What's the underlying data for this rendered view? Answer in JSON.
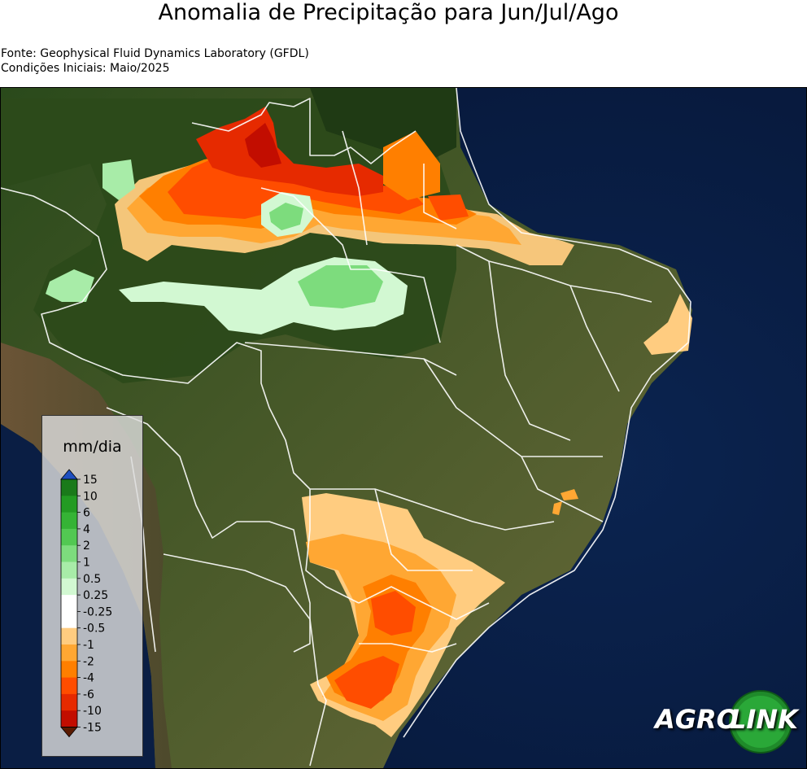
{
  "title": "Anomalia de Precipitação para Jun/Jul/Ago",
  "source_line": "Fonte: Geophysical Fluid Dynamics Laboratory (GFDL)",
  "initial_conditions_line": "Condições Iniciais: Maio/2025",
  "legend": {
    "unit": "mm/dia",
    "levels": [
      {
        "label": "15",
        "color": "#1a7a1a"
      },
      {
        "label": "10",
        "color": "#239b23"
      },
      {
        "label": "6",
        "color": "#35b335"
      },
      {
        "label": "4",
        "color": "#52c852"
      },
      {
        "label": "2",
        "color": "#7ddc7d"
      },
      {
        "label": "1",
        "color": "#a8eca8"
      },
      {
        "label": "0.5",
        "color": "#d2f8d2"
      },
      {
        "label": "0.25",
        "color": "#ffffff"
      },
      {
        "label": "-0.25",
        "color": "#ffffff"
      },
      {
        "label": "-0.5",
        "color": "#ffcc80"
      },
      {
        "label": "-1",
        "color": "#ffa733"
      },
      {
        "label": "-2",
        "color": "#ff7f00"
      },
      {
        "label": "-4",
        "color": "#ff4d00"
      },
      {
        "label": "-6",
        "color": "#e62a00"
      },
      {
        "label": "-10",
        "color": "#c20d00"
      },
      {
        "label": "-15",
        "color": "#8b0000"
      }
    ],
    "under_color": "#5a1a00",
    "over_color": "#1f4fbf"
  },
  "logo": {
    "word1": "AGRO",
    "word2": "LINK"
  },
  "colors": {
    "ocean": "#0f2d5c",
    "land_forest": "#2e4f1d",
    "land_dry": "#6e6a3e",
    "border": "#ffffff"
  }
}
